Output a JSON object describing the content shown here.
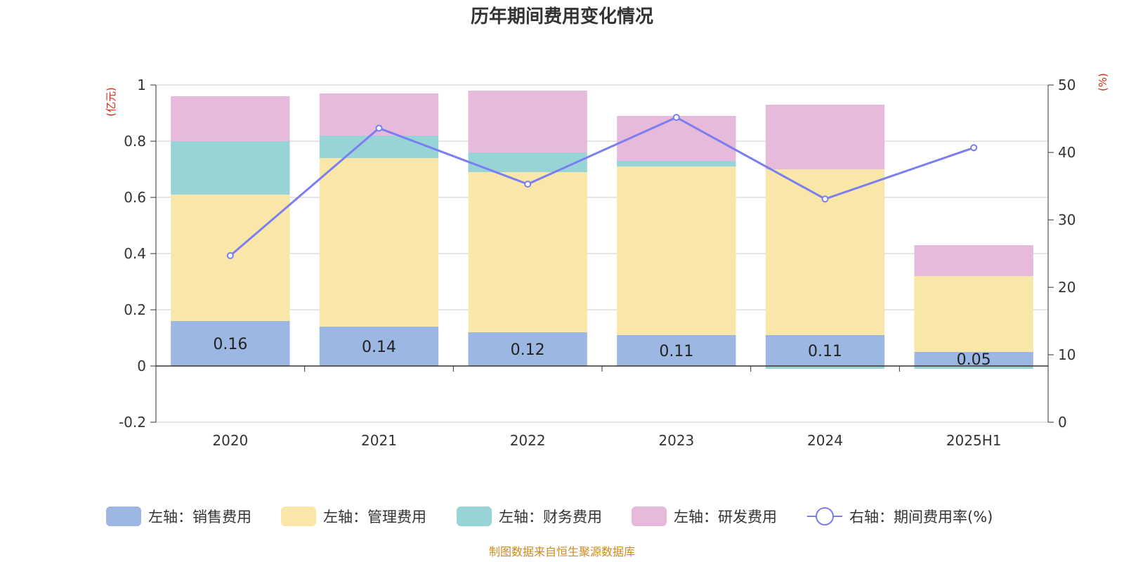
{
  "chart_data": {
    "type": "bar",
    "title": "历年期间费用变化情况",
    "categories": [
      "2020",
      "2021",
      "2022",
      "2023",
      "2024",
      "2025H1"
    ],
    "stacked": true,
    "left_axis": {
      "unit": "(亿元)",
      "ylim": [
        -0.2,
        1
      ],
      "ticks": [
        "-0.2",
        "0",
        "0.2",
        "0.4",
        "0.6",
        "0.8",
        "1"
      ]
    },
    "right_axis": {
      "unit": "(%)",
      "ylim": [
        0,
        50
      ],
      "ticks": [
        "0",
        "10",
        "20",
        "30",
        "40",
        "50"
      ]
    },
    "series": [
      {
        "name": "左轴：销售费用",
        "axis": "left",
        "type": "bar",
        "color": "#9bb7e2",
        "values": [
          0.16,
          0.14,
          0.12,
          0.11,
          0.11,
          0.05
        ],
        "labels": [
          "0.16",
          "0.14",
          "0.12",
          "0.11",
          "0.11",
          "0.05"
        ]
      },
      {
        "name": "左轴：管理费用",
        "axis": "left",
        "type": "bar",
        "color": "#f8e7a8",
        "values": [
          0.45,
          0.6,
          0.57,
          0.6,
          0.59,
          0.27
        ]
      },
      {
        "name": "左轴：财务费用",
        "axis": "left",
        "type": "bar",
        "color": "#98d4d5",
        "values": [
          0.19,
          0.08,
          0.07,
          0.02,
          -0.01,
          -0.01
        ]
      },
      {
        "name": "左轴：研发费用",
        "axis": "left",
        "type": "bar",
        "color": "#e7b9db",
        "values": [
          0.16,
          0.15,
          0.22,
          0.16,
          0.23,
          0.11
        ]
      },
      {
        "name": "右轴：期间费用率(%)",
        "axis": "right",
        "type": "line",
        "color": "#7b7ef0",
        "values": [
          24.7,
          43.6,
          35.3,
          45.2,
          33.1,
          40.7
        ]
      }
    ],
    "grid": true,
    "legend_position": "bottom"
  },
  "footer": {
    "source": "制图数据来自恒生聚源数据库"
  }
}
